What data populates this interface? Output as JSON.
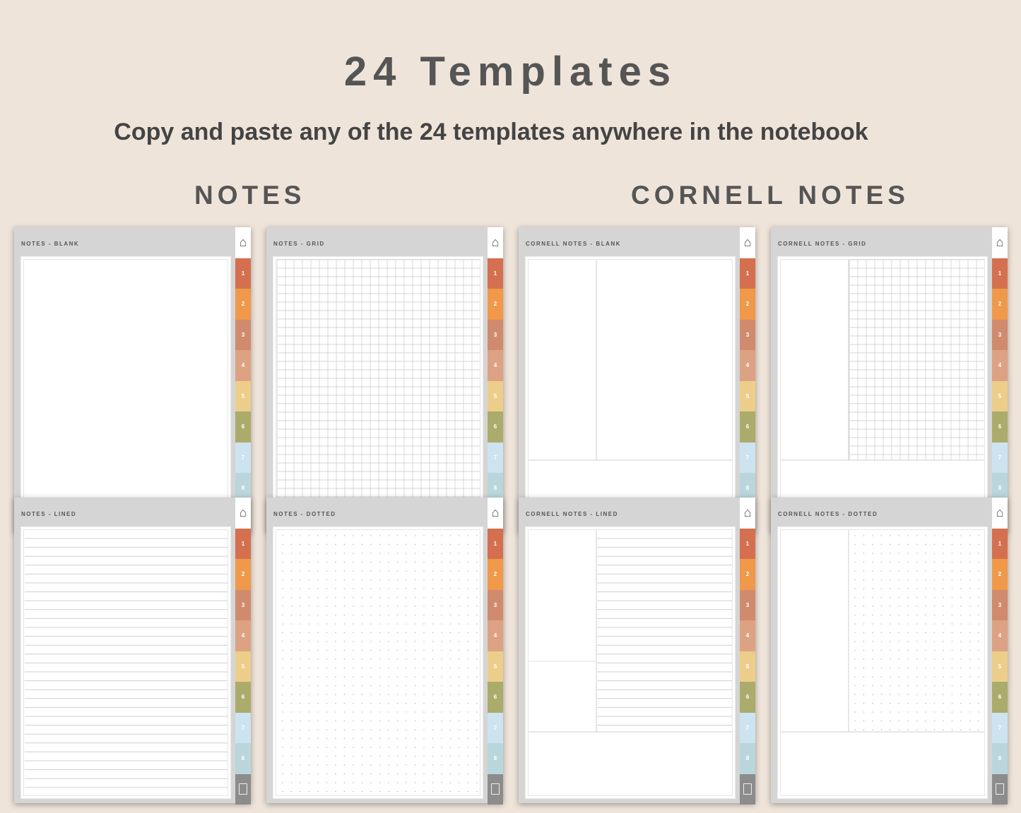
{
  "header": {
    "title": "24 Templates",
    "subtitle": "Copy and paste any of the 24 templates anywhere in the notebook"
  },
  "sections": [
    {
      "label": "NOTES"
    },
    {
      "label": "CORNELL NOTES"
    }
  ],
  "tabs": [
    {
      "label": "1",
      "color": "#d4704f"
    },
    {
      "label": "2",
      "color": "#f0994a"
    },
    {
      "label": "3",
      "color": "#d08b6e"
    },
    {
      "label": "4",
      "color": "#dda283"
    },
    {
      "label": "5",
      "color": "#ecce8a"
    },
    {
      "label": "6",
      "color": "#abab6b"
    },
    {
      "label": "7",
      "color": "#cde3f0"
    },
    {
      "label": "8",
      "color": "#b9d6dc"
    }
  ],
  "icons": {
    "home": "home-icon",
    "clipboard": "clipboard-icon"
  },
  "pages": [
    {
      "title": "NOTES - BLANK",
      "style": "blank",
      "cornell": false
    },
    {
      "title": "NOTES - GRID",
      "style": "grid",
      "cornell": false
    },
    {
      "title": "CORNELL NOTES - BLANK",
      "style": "blank",
      "cornell": true
    },
    {
      "title": "CORNELL NOTES - GRID",
      "style": "grid",
      "cornell": true
    },
    {
      "title": "NOTES - LINED",
      "style": "lined",
      "cornell": false
    },
    {
      "title": "NOTES - DOTTED",
      "style": "dotted",
      "cornell": false
    },
    {
      "title": "CORNELL NOTES - LINED",
      "style": "lined",
      "cornell": true
    },
    {
      "title": "CORNELL NOTES - DOTTED",
      "style": "dotted",
      "cornell": true
    }
  ]
}
